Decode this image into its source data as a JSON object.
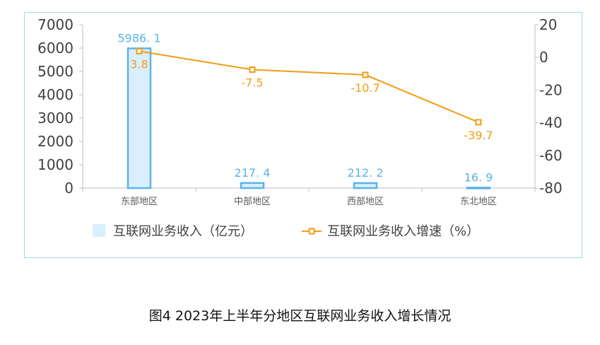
{
  "caption": "图4  2023年上半年分地区互联网业务收入增长情况",
  "colors": {
    "bar_fill": "#d9efff",
    "bar_stroke": "#5bb3e6",
    "line": "#f39c12",
    "frame": "#a9d4ea",
    "text": "#404040"
  },
  "chart_data": {
    "type": "bar+line",
    "categories": [
      "东部地区",
      "中部地区",
      "西部地区",
      "东北地区"
    ],
    "bar_series": {
      "name": "互联网业务收入（亿元）",
      "values": [
        5986.1,
        217.4,
        212.2,
        16.9
      ],
      "labels": [
        "5986. 1",
        "217. 4",
        "212. 2",
        "16. 9"
      ]
    },
    "line_series": {
      "name": "互联网业务收入增速（%）",
      "values": [
        3.8,
        -7.5,
        -10.7,
        -39.7
      ],
      "labels": [
        "3.8",
        "-7.5",
        "-10.7",
        "-39.7"
      ]
    },
    "left_axis": {
      "min": 0,
      "max": 7000,
      "ticks": [
        0,
        1000,
        2000,
        3000,
        4000,
        5000,
        6000,
        7000
      ]
    },
    "right_axis": {
      "min": -80,
      "max": 20,
      "ticks": [
        -80,
        -60,
        -40,
        -20,
        0,
        20
      ]
    },
    "legend_position": "bottom",
    "grid": false
  }
}
